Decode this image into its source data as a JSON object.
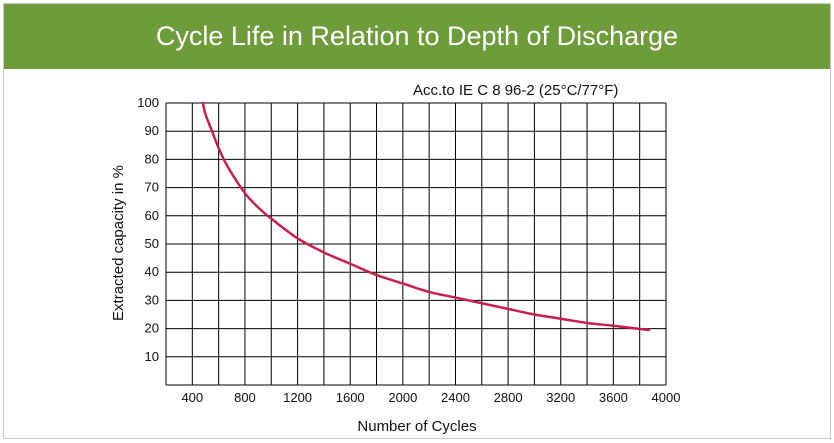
{
  "colors": {
    "header_bg": "#6e9c3a",
    "header_text": "#ffffff",
    "curve": "#c8204e",
    "grid": "#000000"
  },
  "header": {
    "title": "Cycle Life in Relation to Depth of Discharge"
  },
  "chart_data": {
    "type": "line",
    "title": "Cycle Life in Relation to Depth of Discharge",
    "annotation": "Acc.to IE C 8 96-2 (25°C/77°F)",
    "xlabel": "Number of Cycles",
    "ylabel": "Extracted capacity in %",
    "xlim": [
      200,
      4000
    ],
    "ylim": [
      0,
      100
    ],
    "x_ticks": [
      400,
      800,
      1200,
      1600,
      2000,
      2400,
      2800,
      3200,
      3600,
      4000
    ],
    "y_ticks": [
      10,
      20,
      30,
      40,
      50,
      60,
      70,
      80,
      90,
      100
    ],
    "grid": true,
    "series": [
      {
        "x": [
          480,
          500,
          550,
          600,
          650,
          700,
          800,
          900,
          1000,
          1200,
          1400,
          1600,
          1800,
          2000,
          2200,
          2400,
          2600,
          2800,
          3000,
          3200,
          3400,
          3600,
          3870
        ],
        "y": [
          100,
          96,
          90,
          84,
          79,
          75,
          68,
          63,
          59,
          52,
          47,
          43,
          39,
          36,
          33,
          31,
          29,
          27,
          25,
          23.5,
          22,
          21,
          19.5
        ]
      }
    ]
  }
}
